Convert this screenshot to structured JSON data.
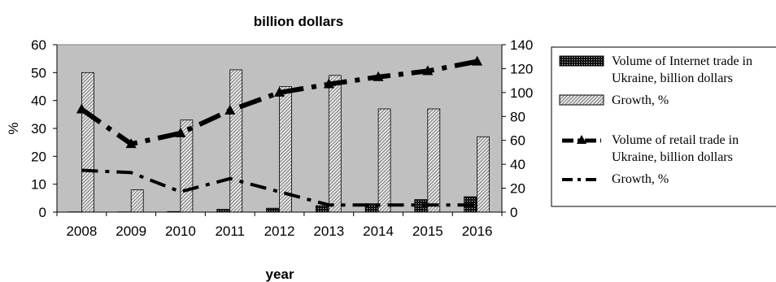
{
  "chart_data": {
    "type": "bar",
    "title": "billion dollars",
    "xlabel": "year",
    "ylabel": "%",
    "categories": [
      "2008",
      "2009",
      "2010",
      "2011",
      "2012",
      "2013",
      "2014",
      "2015",
      "2016"
    ],
    "ylim_left": [
      0,
      60
    ],
    "yticks_left": [
      "0",
      "10",
      "20",
      "30",
      "40",
      "50",
      "60"
    ],
    "ylim_right": [
      0,
      140
    ],
    "yticks_right": [
      "0",
      "20",
      "40",
      "60",
      "80",
      "100",
      "120",
      "140"
    ],
    "grid": false,
    "legend_position": "right",
    "series": [
      {
        "name": "Volume of Internet trade in Ukraine, billion dollars",
        "kind": "bar",
        "axis": "left",
        "pattern": "dots-dark",
        "values": [
          0.1,
          0.1,
          0.2,
          1.0,
          1.4,
          2.3,
          3.0,
          4.5,
          5.5
        ]
      },
      {
        "name": "Growth, %",
        "kind": "bar",
        "axis": "left",
        "pattern": "hatch-gray",
        "values": [
          50,
          8,
          33,
          51,
          45,
          49,
          37,
          37,
          27
        ]
      },
      {
        "name": "Volume of retail trade in Ukraine, billion dollars",
        "kind": "line",
        "axis": "right",
        "style": "thick-dash-dot-triangle",
        "values": [
          86,
          57,
          66,
          85,
          100,
          107,
          113,
          118,
          126
        ]
      },
      {
        "name": "Growth, %",
        "kind": "line",
        "axis": "right",
        "style": "thick-dash",
        "values": [
          35,
          33,
          17,
          28,
          17,
          6,
          6,
          6,
          6
        ]
      }
    ],
    "colors": {
      "plot_background": "#c0c0c0",
      "bar_hatch_light": "#e6e6e6",
      "bar_hatch_dark": "#4a4a4a",
      "ink": "#000000"
    }
  }
}
